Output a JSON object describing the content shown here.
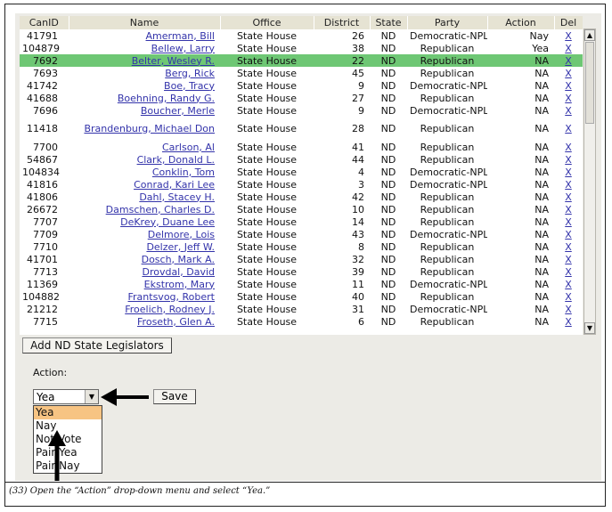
{
  "table": {
    "headers": [
      "CanID",
      "Name",
      "Office",
      "District",
      "State",
      "Party",
      "Action",
      "Del"
    ],
    "rows": [
      {
        "canid": "41791",
        "name": "Amerman, Bill",
        "office": "State House",
        "district": "26",
        "state": "ND",
        "party": "Democratic-NPL",
        "action": "Nay",
        "del": "X"
      },
      {
        "canid": "104879",
        "name": "Bellew, Larry",
        "office": "State House",
        "district": "38",
        "state": "ND",
        "party": "Republican",
        "action": "Yea",
        "del": "X"
      },
      {
        "canid": "7692",
        "name": "Belter, Wesley R.",
        "office": "State House",
        "district": "22",
        "state": "ND",
        "party": "Republican",
        "action": "NA",
        "del": "X"
      },
      {
        "canid": "7693",
        "name": "Berg, Rick",
        "office": "State House",
        "district": "45",
        "state": "ND",
        "party": "Republican",
        "action": "NA",
        "del": "X"
      },
      {
        "canid": "41742",
        "name": "Boe, Tracy",
        "office": "State House",
        "district": "9",
        "state": "ND",
        "party": "Democratic-NPL",
        "action": "NA",
        "del": "X"
      },
      {
        "canid": "41688",
        "name": "Boehning, Randy G.",
        "office": "State House",
        "district": "27",
        "state": "ND",
        "party": "Republican",
        "action": "NA",
        "del": "X"
      },
      {
        "canid": "7696",
        "name": "Boucher, Merle",
        "office": "State House",
        "district": "9",
        "state": "ND",
        "party": "Democratic-NPL",
        "action": "NA",
        "del": "X"
      },
      {
        "canid": "11418",
        "name": "Brandenburg, Michael Don",
        "office": "State House",
        "district": "28",
        "state": "ND",
        "party": "Republican",
        "action": "NA",
        "del": "X"
      },
      {
        "canid": "7700",
        "name": "Carlson, Al",
        "office": "State House",
        "district": "41",
        "state": "ND",
        "party": "Republican",
        "action": "NA",
        "del": "X"
      },
      {
        "canid": "54867",
        "name": "Clark, Donald L.",
        "office": "State House",
        "district": "44",
        "state": "ND",
        "party": "Republican",
        "action": "NA",
        "del": "X"
      },
      {
        "canid": "104834",
        "name": "Conklin, Tom",
        "office": "State House",
        "district": "4",
        "state": "ND",
        "party": "Democratic-NPL",
        "action": "NA",
        "del": "X"
      },
      {
        "canid": "41816",
        "name": "Conrad, Kari Lee",
        "office": "State House",
        "district": "3",
        "state": "ND",
        "party": "Democratic-NPL",
        "action": "NA",
        "del": "X"
      },
      {
        "canid": "41806",
        "name": "Dahl, Stacey H.",
        "office": "State House",
        "district": "42",
        "state": "ND",
        "party": "Republican",
        "action": "NA",
        "del": "X"
      },
      {
        "canid": "26672",
        "name": "Damschen, Charles D.",
        "office": "State House",
        "district": "10",
        "state": "ND",
        "party": "Republican",
        "action": "NA",
        "del": "X"
      },
      {
        "canid": "7707",
        "name": "DeKrey, Duane Lee",
        "office": "State House",
        "district": "14",
        "state": "ND",
        "party": "Republican",
        "action": "NA",
        "del": "X"
      },
      {
        "canid": "7709",
        "name": "Delmore, Lois",
        "office": "State House",
        "district": "43",
        "state": "ND",
        "party": "Democratic-NPL",
        "action": "NA",
        "del": "X"
      },
      {
        "canid": "7710",
        "name": "Delzer, Jeff W.",
        "office": "State House",
        "district": "8",
        "state": "ND",
        "party": "Republican",
        "action": "NA",
        "del": "X"
      },
      {
        "canid": "41701",
        "name": "Dosch, Mark A.",
        "office": "State House",
        "district": "32",
        "state": "ND",
        "party": "Republican",
        "action": "NA",
        "del": "X"
      },
      {
        "canid": "7713",
        "name": "Drovdal, David",
        "office": "State House",
        "district": "39",
        "state": "ND",
        "party": "Republican",
        "action": "NA",
        "del": "X"
      },
      {
        "canid": "11369",
        "name": "Ekstrom, Mary",
        "office": "State House",
        "district": "11",
        "state": "ND",
        "party": "Democratic-NPL",
        "action": "NA",
        "del": "X"
      },
      {
        "canid": "104882",
        "name": "Frantsvog, Robert",
        "office": "State House",
        "district": "40",
        "state": "ND",
        "party": "Republican",
        "action": "NA",
        "del": "X"
      },
      {
        "canid": "21212",
        "name": "Froelich, Rodney J.",
        "office": "State House",
        "district": "31",
        "state": "ND",
        "party": "Democratic-NPL",
        "action": "NA",
        "del": "X"
      },
      {
        "canid": "7715",
        "name": "Froseth, Glen A.",
        "office": "State House",
        "district": "6",
        "state": "ND",
        "party": "Republican",
        "action": "NA",
        "del": "X"
      }
    ],
    "selected_index": 2
  },
  "add_button_label": "Add ND State Legislators",
  "action": {
    "label": "Action:",
    "selected_value": "Yea",
    "options": [
      "Yea",
      "Nay",
      "Not Vote",
      "Pair Yea",
      "Pair Nay"
    ],
    "highlighted_option": "Yea",
    "save_label": "Save"
  },
  "caption": "(33) Open the “Action” drop-down menu and select “Yea.”",
  "colors": {
    "selected_row": "#6ec774",
    "highlighted_option": "#f7c483",
    "header_bg": "#e6e3d3",
    "link": "#3333aa"
  },
  "icons": [
    "scroll-up-icon",
    "scroll-down-icon",
    "dropdown-arrow-icon",
    "left-arrow-annotation-icon",
    "up-arrow-annotation-icon"
  ]
}
